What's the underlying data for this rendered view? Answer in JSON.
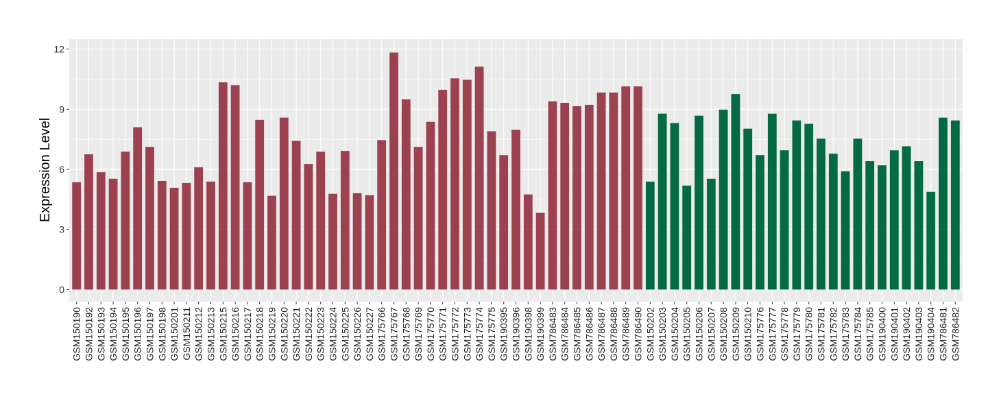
{
  "chart_data": {
    "type": "bar",
    "title": "",
    "xlabel": "",
    "ylabel": "Expression Level",
    "ylim": [
      -0.6,
      12.5
    ],
    "yticks": [
      0,
      3,
      6,
      9,
      12
    ],
    "grid": true,
    "colors": {
      "group1": "#9b4150",
      "group2": "#046a43",
      "panel": "#ebebeb"
    },
    "categories": [
      "GSM150190",
      "GSM150192",
      "GSM150193",
      "GSM150194",
      "GSM150195",
      "GSM150196",
      "GSM150197",
      "GSM150198",
      "GSM150201",
      "GSM150211",
      "GSM150212",
      "GSM150213",
      "GSM150215",
      "GSM150216",
      "GSM150217",
      "GSM150218",
      "GSM150219",
      "GSM150220",
      "GSM150221",
      "GSM150222",
      "GSM150223",
      "GSM150224",
      "GSM150225",
      "GSM150226",
      "GSM150227",
      "GSM175766",
      "GSM175767",
      "GSM175768",
      "GSM175769",
      "GSM175770",
      "GSM175771",
      "GSM175772",
      "GSM175773",
      "GSM175774",
      "GSM175775",
      "GSM190395",
      "GSM190396",
      "GSM190398",
      "GSM190399",
      "GSM786483",
      "GSM786484",
      "GSM786485",
      "GSM786486",
      "GSM786487",
      "GSM786488",
      "GSM786489",
      "GSM786490",
      "GSM150202",
      "GSM150203",
      "GSM150204",
      "GSM150205",
      "GSM150206",
      "GSM150207",
      "GSM150208",
      "GSM150209",
      "GSM150210",
      "GSM175776",
      "GSM175777",
      "GSM175778",
      "GSM175779",
      "GSM175780",
      "GSM175781",
      "GSM175782",
      "GSM175783",
      "GSM175784",
      "GSM175785",
      "GSM190400",
      "GSM190401",
      "GSM190402",
      "GSM190403",
      "GSM190404",
      "GSM786481",
      "GSM786482"
    ],
    "values": [
      5.36,
      6.75,
      5.86,
      5.53,
      6.88,
      8.1,
      7.12,
      5.42,
      5.08,
      5.32,
      6.1,
      5.39,
      10.34,
      10.2,
      5.36,
      8.47,
      4.68,
      8.58,
      7.42,
      6.27,
      6.88,
      4.78,
      6.92,
      4.81,
      4.71,
      7.46,
      11.83,
      9.49,
      7.12,
      8.37,
      9.97,
      10.54,
      10.47,
      11.12,
      7.9,
      6.71,
      7.97,
      4.75,
      3.83,
      9.39,
      9.32,
      9.15,
      9.22,
      9.83,
      9.83,
      10.14,
      10.14,
      5.39,
      8.78,
      8.31,
      5.19,
      8.68,
      5.53,
      8.98,
      9.76,
      8.03,
      6.71,
      8.78,
      6.95,
      8.44,
      8.27,
      7.53,
      6.78,
      5.9,
      7.53,
      6.41,
      6.2,
      6.95,
      7.15,
      6.41,
      4.88,
      8.58,
      8.44
    ],
    "groups": [
      "group1",
      "group1",
      "group1",
      "group1",
      "group1",
      "group1",
      "group1",
      "group1",
      "group1",
      "group1",
      "group1",
      "group1",
      "group1",
      "group1",
      "group1",
      "group1",
      "group1",
      "group1",
      "group1",
      "group1",
      "group1",
      "group1",
      "group1",
      "group1",
      "group1",
      "group1",
      "group1",
      "group1",
      "group1",
      "group1",
      "group1",
      "group1",
      "group1",
      "group1",
      "group1",
      "group1",
      "group1",
      "group1",
      "group1",
      "group1",
      "group1",
      "group1",
      "group1",
      "group1",
      "group1",
      "group1",
      "group1",
      "group2",
      "group2",
      "group2",
      "group2",
      "group2",
      "group2",
      "group2",
      "group2",
      "group2",
      "group2",
      "group2",
      "group2",
      "group2",
      "group2",
      "group2",
      "group2",
      "group2",
      "group2",
      "group2",
      "group2",
      "group2",
      "group2",
      "group2",
      "group2",
      "group2",
      "group2"
    ]
  }
}
